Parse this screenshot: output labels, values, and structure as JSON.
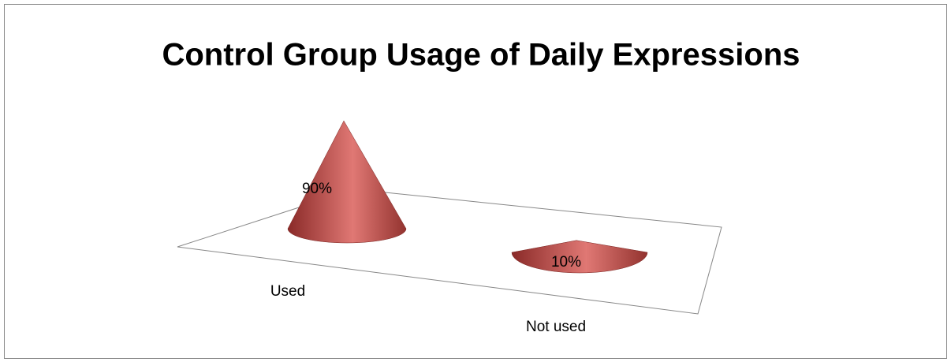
{
  "chart_data": {
    "type": "cone",
    "title": "Control Group Usage of Daily Expressions",
    "categories": [
      "Used",
      "Not used"
    ],
    "values": [
      90,
      10
    ],
    "value_labels": [
      "90%",
      "10%"
    ],
    "color": "#c0504d"
  }
}
